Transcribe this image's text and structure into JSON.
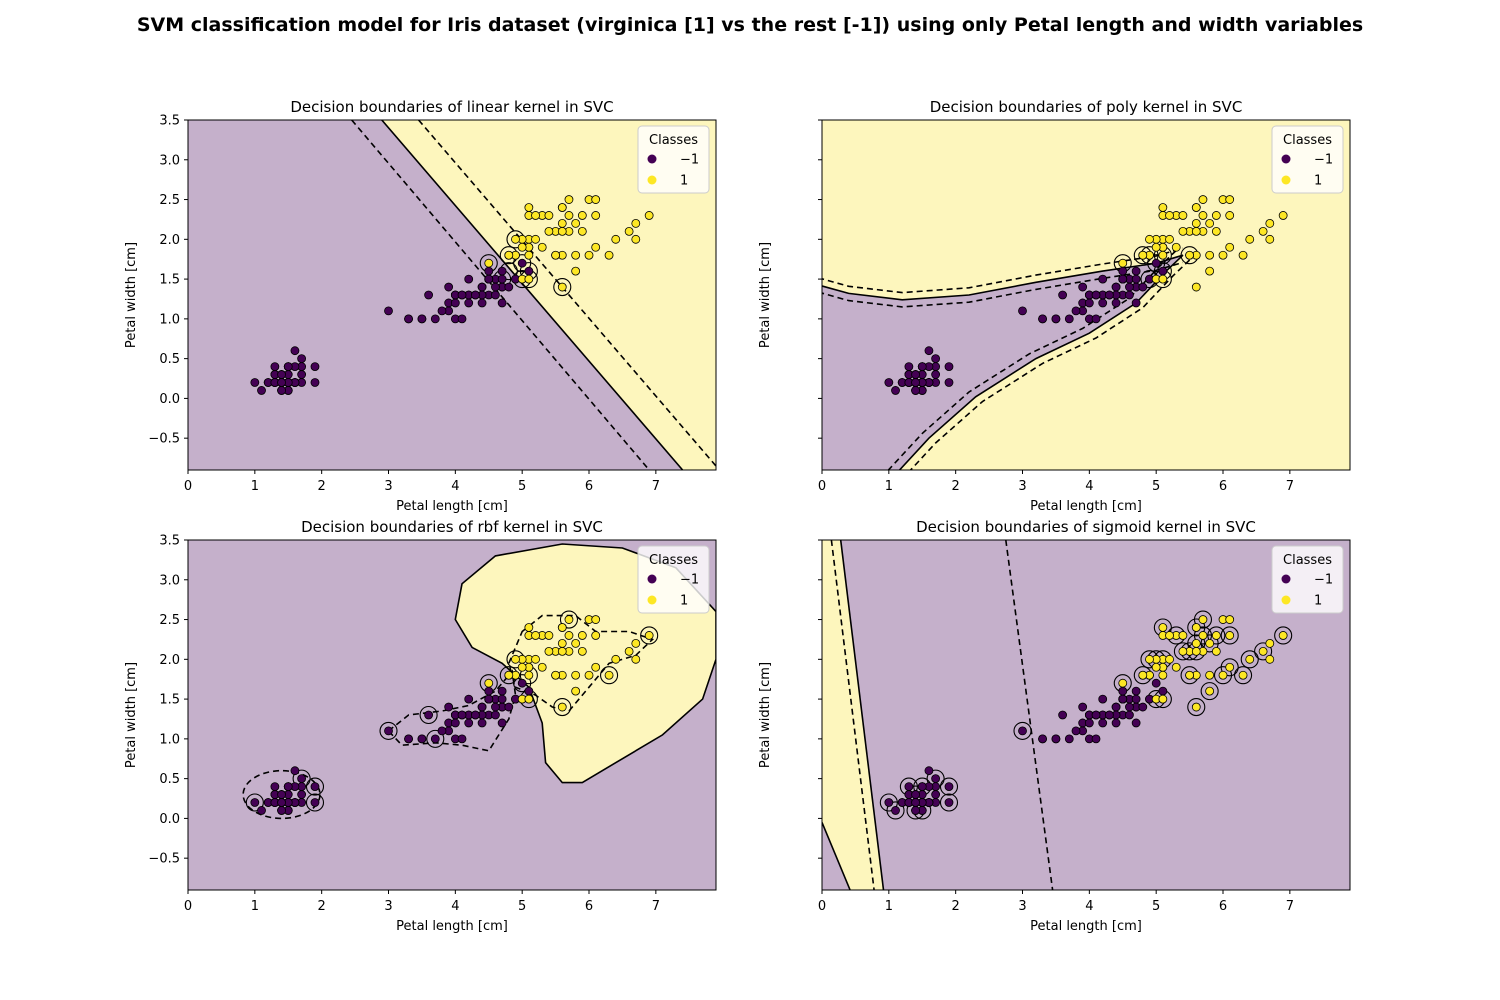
{
  "suptitle": "SVM classification model for Iris dataset (virginica [1] vs the rest [-1]) using only Petal length and width variables",
  "colors": {
    "class_neg": "#440154",
    "class_pos": "#fde725",
    "region_neg": "#c5b0cb",
    "region_pos": "#fdf6bd"
  },
  "chart_data": [
    {
      "type": "scatter",
      "title": "Decision boundaries of linear kernel in SVC",
      "xlabel": "Petal length [cm]",
      "ylabel": "Petal width [cm]",
      "xlim": [
        0,
        7.9
      ],
      "ylim": [
        -0.9,
        3.5
      ],
      "xticks": [
        "0",
        "1",
        "2",
        "3",
        "4",
        "5",
        "6",
        "7"
      ],
      "yticks": [
        "−0.5",
        "0.0",
        "0.5",
        "1.0",
        "1.5",
        "2.0",
        "2.5",
        "3.0",
        "3.5"
      ],
      "legend": {
        "title": "Classes",
        "labels": [
          "−1",
          "1"
        ],
        "placement": "upper right"
      },
      "boundary": {
        "kind": "line",
        "decision": [
          [
            2.9,
            3.5
          ],
          [
            7.4,
            -0.9
          ]
        ],
        "margin_low": [
          [
            2.45,
            3.5
          ],
          [
            6.9,
            -0.9
          ]
        ],
        "margin_high": [
          [
            3.45,
            3.5
          ],
          [
            7.9,
            -0.85
          ]
        ]
      },
      "support_vectors": [
        [
          4.5,
          1.7
        ],
        [
          4.8,
          1.8
        ],
        [
          4.9,
          2.0
        ],
        [
          5.0,
          1.7
        ],
        [
          4.8,
          1.6
        ],
        [
          4.7,
          1.5
        ],
        [
          5.1,
          1.6
        ],
        [
          5.1,
          1.5
        ],
        [
          5.0,
          1.5
        ],
        [
          5.6,
          1.4
        ]
      ]
    },
    {
      "type": "scatter",
      "title": "Decision boundaries of poly kernel in SVC",
      "xlabel": "Petal length [cm]",
      "ylabel": "Petal width [cm]",
      "xlim": [
        0,
        7.9
      ],
      "ylim": [
        -0.9,
        3.5
      ],
      "xticks": [
        "0",
        "1",
        "2",
        "3",
        "4",
        "5",
        "6",
        "7"
      ],
      "yticks": [],
      "legend": {
        "title": "Classes",
        "labels": [
          "−1",
          "1"
        ],
        "placement": "upper right"
      },
      "boundary": {
        "kind": "poly"
      },
      "support_vectors": [
        [
          4.5,
          1.7
        ],
        [
          4.8,
          1.8
        ],
        [
          4.9,
          1.8
        ],
        [
          5.0,
          1.7
        ],
        [
          5.1,
          1.6
        ],
        [
          5.1,
          1.5
        ],
        [
          4.9,
          1.5
        ],
        [
          5.1,
          1.8
        ],
        [
          5.5,
          1.8
        ]
      ]
    },
    {
      "type": "scatter",
      "title": "Decision boundaries of rbf kernel in SVC",
      "xlabel": "Petal length [cm]",
      "ylabel": "Petal width [cm]",
      "xlim": [
        0,
        7.9
      ],
      "ylim": [
        -0.9,
        3.5
      ],
      "xticks": [
        "0",
        "1",
        "2",
        "3",
        "4",
        "5",
        "6",
        "7"
      ],
      "yticks": [
        "−0.5",
        "0.0",
        "0.5",
        "1.0",
        "1.5",
        "2.0",
        "2.5",
        "3.0",
        "3.5"
      ],
      "legend": {
        "title": "Classes",
        "labels": [
          "−1",
          "1"
        ],
        "placement": "upper right"
      },
      "boundary": {
        "kind": "rbf"
      },
      "support_vectors": [
        [
          1.0,
          0.2
        ],
        [
          1.7,
          0.5
        ],
        [
          1.9,
          0.4
        ],
        [
          1.9,
          0.2
        ],
        [
          3.0,
          1.1
        ],
        [
          3.6,
          1.3
        ],
        [
          3.7,
          1.0
        ],
        [
          4.5,
          1.7
        ],
        [
          4.8,
          1.8
        ],
        [
          4.9,
          2.0
        ],
        [
          5.0,
          1.7
        ],
        [
          5.1,
          1.5
        ],
        [
          5.1,
          1.8
        ],
        [
          5.6,
          1.4
        ],
        [
          5.7,
          2.5
        ],
        [
          6.3,
          1.8
        ],
        [
          6.9,
          2.3
        ]
      ]
    },
    {
      "type": "scatter",
      "title": "Decision boundaries of sigmoid kernel in SVC",
      "xlabel": "Petal length [cm]",
      "ylabel": "Petal width [cm]",
      "xlim": [
        0,
        7.9
      ],
      "ylim": [
        -0.9,
        3.5
      ],
      "xticks": [
        "0",
        "1",
        "2",
        "3",
        "4",
        "5",
        "6",
        "7"
      ],
      "yticks": [],
      "legend": {
        "title": "Classes",
        "labels": [
          "−1",
          "1"
        ],
        "placement": "upper right"
      },
      "boundary": {
        "kind": "sigmoid"
      },
      "support_vectors": [
        [
          1.0,
          0.2
        ],
        [
          1.1,
          0.1
        ],
        [
          1.3,
          0.4
        ],
        [
          1.4,
          0.3
        ],
        [
          1.5,
          0.4
        ],
        [
          1.7,
          0.5
        ],
        [
          1.9,
          0.4
        ],
        [
          1.9,
          0.2
        ],
        [
          1.4,
          0.1
        ],
        [
          1.5,
          0.1
        ],
        [
          3.0,
          1.1
        ],
        [
          4.5,
          1.7
        ],
        [
          4.8,
          1.8
        ],
        [
          4.9,
          2.0
        ],
        [
          5.0,
          2.0
        ],
        [
          5.1,
          2.0
        ],
        [
          5.1,
          2.4
        ],
        [
          5.1,
          1.5
        ],
        [
          5.0,
          1.5
        ],
        [
          5.3,
          2.3
        ],
        [
          5.4,
          2.1
        ],
        [
          5.5,
          2.1
        ],
        [
          5.5,
          1.8
        ],
        [
          5.6,
          2.4
        ],
        [
          5.6,
          2.2
        ],
        [
          5.6,
          2.1
        ],
        [
          5.6,
          1.4
        ],
        [
          5.7,
          2.5
        ],
        [
          5.7,
          2.3
        ],
        [
          5.8,
          2.2
        ],
        [
          5.8,
          1.6
        ],
        [
          5.9,
          2.3
        ],
        [
          6.0,
          1.8
        ],
        [
          6.1,
          2.3
        ],
        [
          6.1,
          1.9
        ],
        [
          6.3,
          1.8
        ],
        [
          6.4,
          2.0
        ],
        [
          6.6,
          2.1
        ],
        [
          6.9,
          2.3
        ]
      ]
    }
  ],
  "points": {
    "class_neg": [
      [
        1.4,
        0.2
      ],
      [
        1.4,
        0.2
      ],
      [
        1.3,
        0.2
      ],
      [
        1.5,
        0.2
      ],
      [
        1.4,
        0.2
      ],
      [
        1.7,
        0.4
      ],
      [
        1.4,
        0.3
      ],
      [
        1.5,
        0.2
      ],
      [
        1.4,
        0.2
      ],
      [
        1.5,
        0.1
      ],
      [
        1.5,
        0.2
      ],
      [
        1.6,
        0.2
      ],
      [
        1.4,
        0.1
      ],
      [
        1.1,
        0.1
      ],
      [
        1.2,
        0.2
      ],
      [
        1.5,
        0.4
      ],
      [
        1.3,
        0.4
      ],
      [
        1.4,
        0.3
      ],
      [
        1.7,
        0.3
      ],
      [
        1.5,
        0.3
      ],
      [
        1.7,
        0.2
      ],
      [
        1.5,
        0.4
      ],
      [
        1.0,
        0.2
      ],
      [
        1.7,
        0.5
      ],
      [
        1.9,
        0.2
      ],
      [
        1.6,
        0.2
      ],
      [
        1.6,
        0.4
      ],
      [
        1.5,
        0.2
      ],
      [
        1.4,
        0.2
      ],
      [
        1.6,
        0.2
      ],
      [
        1.6,
        0.2
      ],
      [
        1.5,
        0.4
      ],
      [
        1.5,
        0.1
      ],
      [
        1.4,
        0.2
      ],
      [
        1.5,
        0.2
      ],
      [
        1.2,
        0.2
      ],
      [
        1.3,
        0.2
      ],
      [
        1.4,
        0.1
      ],
      [
        1.3,
        0.2
      ],
      [
        1.5,
        0.2
      ],
      [
        1.3,
        0.3
      ],
      [
        1.3,
        0.3
      ],
      [
        1.3,
        0.2
      ],
      [
        1.6,
        0.6
      ],
      [
        1.9,
        0.4
      ],
      [
        1.4,
        0.3
      ],
      [
        1.6,
        0.2
      ],
      [
        1.4,
        0.2
      ],
      [
        1.5,
        0.2
      ],
      [
        1.4,
        0.2
      ],
      [
        4.7,
        1.4
      ],
      [
        4.5,
        1.5
      ],
      [
        4.9,
        1.5
      ],
      [
        4.0,
        1.3
      ],
      [
        4.6,
        1.5
      ],
      [
        4.5,
        1.3
      ],
      [
        4.7,
        1.6
      ],
      [
        3.3,
        1.0
      ],
      [
        4.6,
        1.3
      ],
      [
        3.9,
        1.4
      ],
      [
        3.5,
        1.0
      ],
      [
        4.2,
        1.5
      ],
      [
        4.0,
        1.0
      ],
      [
        4.7,
        1.4
      ],
      [
        3.6,
        1.3
      ],
      [
        4.4,
        1.4
      ],
      [
        4.5,
        1.5
      ],
      [
        4.1,
        1.0
      ],
      [
        4.5,
        1.5
      ],
      [
        3.9,
        1.1
      ],
      [
        4.8,
        1.8
      ],
      [
        4.0,
        1.3
      ],
      [
        4.9,
        1.5
      ],
      [
        4.7,
        1.2
      ],
      [
        4.3,
        1.3
      ],
      [
        4.4,
        1.4
      ],
      [
        4.8,
        1.4
      ],
      [
        5.0,
        1.7
      ],
      [
        4.5,
        1.5
      ],
      [
        3.5,
        1.0
      ],
      [
        3.8,
        1.1
      ],
      [
        3.7,
        1.0
      ],
      [
        3.9,
        1.2
      ],
      [
        5.1,
        1.6
      ],
      [
        4.5,
        1.5
      ],
      [
        4.5,
        1.6
      ],
      [
        4.7,
        1.5
      ],
      [
        4.4,
        1.3
      ],
      [
        4.1,
        1.3
      ],
      [
        4.0,
        1.3
      ],
      [
        4.4,
        1.2
      ],
      [
        4.6,
        1.4
      ],
      [
        4.0,
        1.2
      ],
      [
        3.3,
        1.0
      ],
      [
        4.2,
        1.3
      ],
      [
        4.2,
        1.2
      ],
      [
        4.2,
        1.3
      ],
      [
        4.3,
        1.3
      ],
      [
        3.0,
        1.1
      ],
      [
        4.1,
        1.3
      ]
    ],
    "class_pos": [
      [
        6.0,
        2.5
      ],
      [
        5.1,
        1.9
      ],
      [
        5.9,
        2.1
      ],
      [
        5.6,
        1.8
      ],
      [
        5.8,
        2.2
      ],
      [
        6.6,
        2.1
      ],
      [
        4.5,
        1.7
      ],
      [
        6.3,
        1.8
      ],
      [
        5.8,
        1.8
      ],
      [
        6.1,
        2.5
      ],
      [
        5.1,
        2.0
      ],
      [
        5.3,
        1.9
      ],
      [
        5.5,
        2.1
      ],
      [
        5.0,
        2.0
      ],
      [
        5.1,
        2.4
      ],
      [
        5.3,
        2.3
      ],
      [
        5.5,
        1.8
      ],
      [
        6.7,
        2.2
      ],
      [
        6.9,
        2.3
      ],
      [
        5.0,
        1.5
      ],
      [
        5.7,
        2.3
      ],
      [
        4.9,
        2.0
      ],
      [
        6.7,
        2.0
      ],
      [
        4.9,
        1.8
      ],
      [
        5.7,
        2.1
      ],
      [
        6.0,
        1.8
      ],
      [
        4.8,
        1.8
      ],
      [
        4.9,
        1.8
      ],
      [
        5.6,
        2.1
      ],
      [
        5.8,
        1.6
      ],
      [
        6.1,
        1.9
      ],
      [
        6.4,
        2.0
      ],
      [
        5.6,
        2.2
      ],
      [
        5.1,
        1.5
      ],
      [
        5.6,
        1.4
      ],
      [
        6.1,
        2.3
      ],
      [
        5.6,
        2.4
      ],
      [
        5.5,
        1.8
      ],
      [
        4.8,
        1.8
      ],
      [
        5.4,
        2.1
      ],
      [
        5.6,
        2.4
      ],
      [
        5.1,
        2.3
      ],
      [
        5.1,
        1.9
      ],
      [
        5.9,
        2.3
      ],
      [
        5.7,
        2.5
      ],
      [
        5.2,
        2.3
      ],
      [
        5.0,
        1.9
      ],
      [
        5.2,
        2.0
      ],
      [
        5.4,
        2.3
      ],
      [
        5.1,
        1.8
      ]
    ]
  }
}
